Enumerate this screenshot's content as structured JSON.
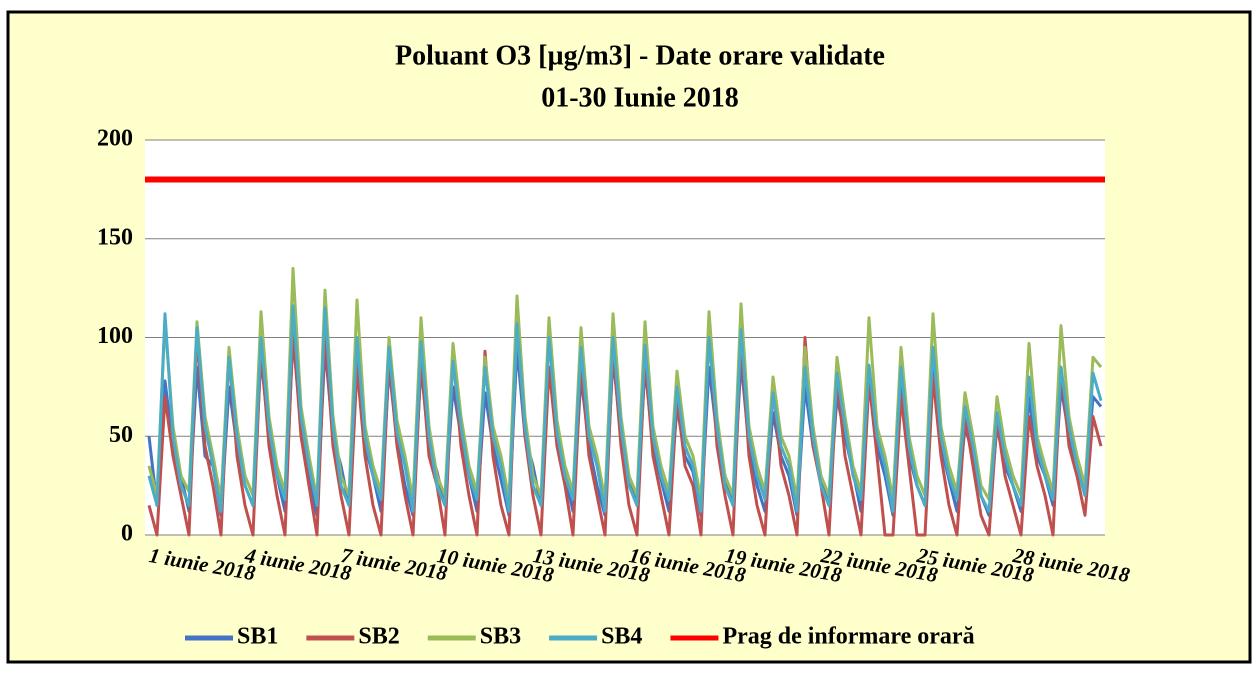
{
  "chart_data": {
    "type": "line",
    "title": "Poluant O3 [µg/m3] - Date orare validate",
    "subtitle": "01-30 Iunie 2018",
    "categories": [
      "1 iunie 2018",
      null,
      null,
      null,
      null,
      null,
      null,
      null,
      null,
      null,
      null,
      null,
      "4 iunie 2018",
      null,
      null,
      null,
      null,
      null,
      null,
      null,
      null,
      null,
      null,
      null,
      "7 iunie 2018",
      null,
      null,
      null,
      null,
      null,
      null,
      null,
      null,
      null,
      null,
      null,
      "10 iunie 2018",
      null,
      null,
      null,
      null,
      null,
      null,
      null,
      null,
      null,
      null,
      null,
      "13 iunie 2018",
      null,
      null,
      null,
      null,
      null,
      null,
      null,
      null,
      null,
      null,
      null,
      "16 iunie 2018",
      null,
      null,
      null,
      null,
      null,
      null,
      null,
      null,
      null,
      null,
      null,
      "19 iunie 2018",
      null,
      null,
      null,
      null,
      null,
      null,
      null,
      null,
      null,
      null,
      null,
      "22 iunie 2018",
      null,
      null,
      null,
      null,
      null,
      null,
      null,
      null,
      null,
      null,
      null,
      "25 iunie 2018",
      null,
      null,
      null,
      null,
      null,
      null,
      null,
      null,
      null,
      null,
      null,
      "28 iunie 2018",
      null,
      null,
      null,
      null,
      null,
      null,
      null,
      null,
      null,
      null,
      null
    ],
    "series": [
      {
        "name": "SB1",
        "color": "#4472c4",
        "values": [
          50,
          15,
          78,
          45,
          30,
          12,
          85,
          40,
          35,
          10,
          75,
          45,
          25,
          15,
          90,
          50,
          30,
          12,
          100,
          55,
          28,
          10,
          95,
          50,
          35,
          15,
          88,
          45,
          30,
          12,
          85,
          48,
          25,
          10,
          85,
          45,
          32,
          15,
          75,
          50,
          30,
          12,
          72,
          45,
          28,
          10,
          95,
          50,
          35,
          15,
          85,
          48,
          30,
          12,
          80,
          45,
          25,
          10,
          90,
          50,
          30,
          15,
          85,
          45,
          28,
          12,
          65,
          40,
          32,
          10,
          85,
          50,
          30,
          15,
          88,
          45,
          25,
          12,
          62,
          40,
          30,
          10,
          75,
          45,
          28,
          15,
          70,
          50,
          32,
          12,
          80,
          45,
          30,
          10,
          75,
          40,
          25,
          15,
          85,
          45,
          28,
          12,
          55,
          40,
          20,
          10,
          55,
          35,
          25,
          12,
          70,
          40,
          30,
          15,
          75,
          50,
          35,
          20,
          70,
          65
        ]
      },
      {
        "name": "SB2",
        "color": "#c0504d",
        "values": [
          15,
          0,
          70,
          40,
          20,
          0,
          102,
          45,
          25,
          0,
          92,
          40,
          15,
          0,
          95,
          45,
          20,
          0,
          105,
          50,
          25,
          0,
          104,
          45,
          20,
          0,
          85,
          40,
          15,
          0,
          90,
          45,
          20,
          0,
          90,
          40,
          25,
          0,
          92,
          45,
          20,
          0,
          93,
          40,
          15,
          0,
          110,
          50,
          20,
          0,
          85,
          45,
          25,
          0,
          88,
          40,
          20,
          0,
          95,
          45,
          15,
          0,
          90,
          40,
          20,
          0,
          70,
          35,
          25,
          0,
          105,
          45,
          20,
          0,
          100,
          40,
          15,
          0,
          75,
          35,
          20,
          0,
          100,
          45,
          25,
          0,
          80,
          40,
          20,
          0,
          78,
          40,
          0,
          0,
          70,
          35,
          0,
          0,
          80,
          40,
          15,
          0,
          60,
          35,
          10,
          0,
          58,
          30,
          15,
          0,
          60,
          35,
          20,
          0,
          85,
          45,
          30,
          10,
          60,
          45
        ]
      },
      {
        "name": "SB3",
        "color": "#9bbb59",
        "values": [
          35,
          20,
          108,
          55,
          30,
          22,
          108,
          60,
          40,
          18,
          95,
          55,
          30,
          20,
          113,
          60,
          35,
          22,
          135,
          65,
          40,
          18,
          124,
          60,
          30,
          20,
          119,
          55,
          35,
          22,
          100,
          58,
          40,
          18,
          110,
          55,
          30,
          20,
          97,
          60,
          35,
          22,
          90,
          55,
          40,
          18,
          121,
          60,
          30,
          20,
          110,
          58,
          35,
          22,
          105,
          55,
          40,
          18,
          112,
          60,
          30,
          20,
          108,
          55,
          35,
          22,
          83,
          50,
          40,
          18,
          113,
          60,
          30,
          20,
          117,
          55,
          35,
          22,
          80,
          50,
          40,
          18,
          95,
          55,
          30,
          20,
          90,
          60,
          35,
          22,
          110,
          55,
          40,
          18,
          95,
          50,
          30,
          20,
          112,
          55,
          35,
          22,
          72,
          50,
          25,
          18,
          70,
          45,
          30,
          20,
          97,
          50,
          35,
          22,
          106,
          60,
          40,
          25,
          90,
          85
        ]
      },
      {
        "name": "SB4",
        "color": "#4bacc6",
        "values": [
          30,
          15,
          112,
          50,
          25,
          15,
          105,
          55,
          35,
          12,
          90,
          50,
          25,
          15,
          100,
          55,
          30,
          18,
          116,
          60,
          35,
          15,
          115,
          55,
          25,
          15,
          100,
          50,
          30,
          18,
          95,
          52,
          35,
          12,
          98,
          50,
          25,
          15,
          88,
          55,
          30,
          18,
          85,
          50,
          35,
          12,
          107,
          55,
          25,
          15,
          100,
          52,
          30,
          18,
          95,
          50,
          35,
          12,
          100,
          55,
          25,
          15,
          96,
          50,
          30,
          18,
          75,
          45,
          35,
          12,
          100,
          55,
          25,
          15,
          104,
          50,
          30,
          18,
          72,
          45,
          35,
          12,
          85,
          50,
          25,
          15,
          82,
          55,
          30,
          18,
          86,
          50,
          35,
          12,
          85,
          45,
          25,
          15,
          95,
          50,
          30,
          18,
          65,
          45,
          20,
          12,
          62,
          40,
          25,
          15,
          80,
          45,
          30,
          18,
          85,
          55,
          35,
          20,
          82,
          68
        ]
      }
    ],
    "threshold": {
      "name": "Prag de informare orară",
      "value": 180,
      "color": "#ff0000"
    },
    "ylim": [
      0,
      200
    ],
    "yticks": [
      0,
      50,
      100,
      150,
      200
    ],
    "grid": true
  }
}
